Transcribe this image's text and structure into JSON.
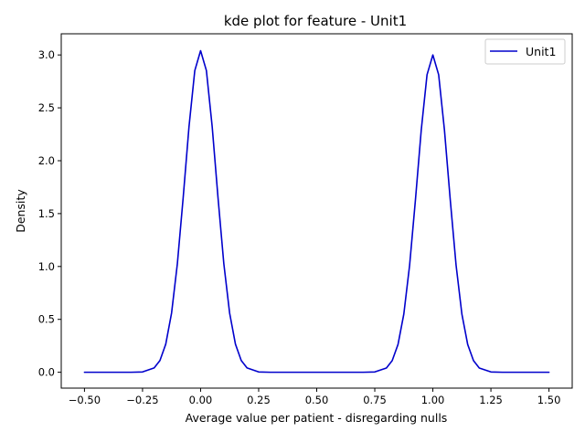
{
  "chart_data": {
    "type": "line",
    "title": "kde plot for feature -  Unit1",
    "xlabel": "Average value per patient - disregarding nulls",
    "ylabel": "Density",
    "xlim": [
      -0.6,
      1.6
    ],
    "ylim": [
      -0.15,
      3.2
    ],
    "xticks": [
      -0.5,
      -0.25,
      0.0,
      0.25,
      0.5,
      0.75,
      1.0,
      1.25,
      1.5
    ],
    "xtick_labels": [
      "−0.50",
      "−0.25",
      "0.00",
      "0.25",
      "0.50",
      "0.75",
      "1.00",
      "1.25",
      "1.50"
    ],
    "yticks": [
      0.0,
      0.5,
      1.0,
      1.5,
      2.0,
      2.5,
      3.0
    ],
    "ytick_labels": [
      "0.0",
      "0.5",
      "1.0",
      "1.5",
      "2.0",
      "2.5",
      "3.0"
    ],
    "grid": false,
    "legend": {
      "position": "top-right"
    },
    "series": [
      {
        "name": "Unit1",
        "color": "#0000cc",
        "x": [
          -0.5,
          -0.45,
          -0.4,
          -0.35,
          -0.3,
          -0.25,
          -0.2,
          -0.175,
          -0.15,
          -0.125,
          -0.1,
          -0.075,
          -0.05,
          -0.025,
          0.0,
          0.025,
          0.05,
          0.075,
          0.1,
          0.125,
          0.15,
          0.175,
          0.2,
          0.25,
          0.3,
          0.35,
          0.4,
          0.45,
          0.5,
          0.55,
          0.6,
          0.65,
          0.7,
          0.75,
          0.8,
          0.825,
          0.85,
          0.875,
          0.9,
          0.925,
          0.95,
          0.975,
          1.0,
          1.025,
          1.05,
          1.075,
          1.1,
          1.125,
          1.15,
          1.175,
          1.2,
          1.25,
          1.3,
          1.35,
          1.4,
          1.45,
          1.5
        ],
        "y": [
          0.0,
          0.0,
          0.0,
          0.0,
          0.0,
          0.003,
          0.041,
          0.111,
          0.266,
          0.559,
          1.027,
          1.651,
          2.32,
          2.852,
          3.04,
          2.852,
          2.32,
          1.651,
          1.027,
          0.559,
          0.266,
          0.111,
          0.041,
          0.003,
          0.0,
          0.0,
          0.0,
          0.0,
          0.0,
          0.0,
          0.0,
          0.0,
          0.0,
          0.003,
          0.04,
          0.11,
          0.263,
          0.55,
          1.013,
          1.629,
          2.289,
          2.813,
          3.0,
          2.813,
          2.289,
          1.629,
          1.013,
          0.55,
          0.263,
          0.11,
          0.04,
          0.003,
          0.0,
          0.0,
          0.0,
          0.0,
          0.0
        ]
      }
    ]
  }
}
